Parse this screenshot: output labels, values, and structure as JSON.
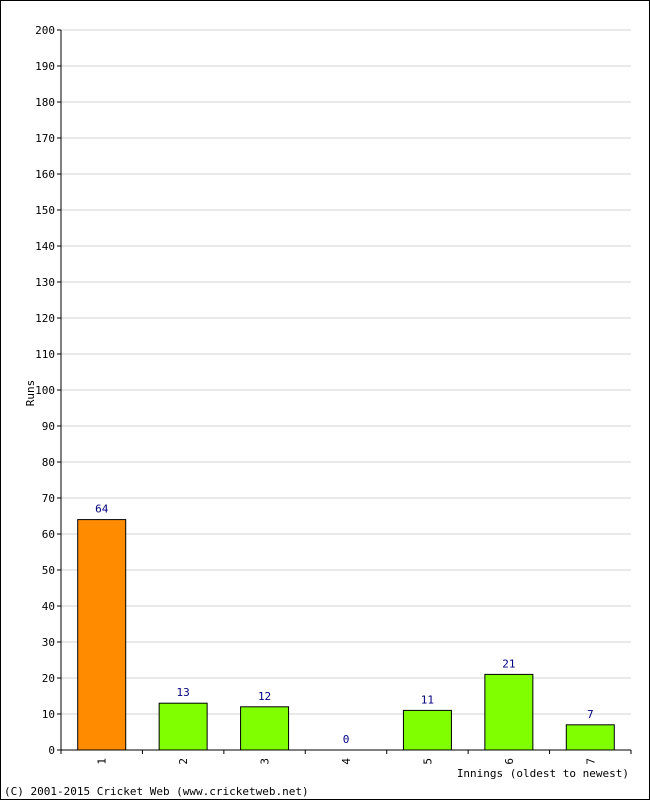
{
  "chart_data": {
    "type": "bar",
    "title": "",
    "xlabel": "Innings (oldest to newest)",
    "ylabel": "Runs",
    "categories": [
      "1",
      "2",
      "3",
      "4",
      "5",
      "6",
      "7"
    ],
    "values": [
      64,
      13,
      12,
      0,
      11,
      21,
      7
    ],
    "data_labels": [
      "64",
      "13",
      "12",
      "0",
      "11",
      "21",
      "7"
    ],
    "yticks": [
      0,
      10,
      20,
      30,
      40,
      50,
      60,
      70,
      80,
      90,
      100,
      110,
      120,
      130,
      140,
      150,
      160,
      170,
      180,
      190,
      200
    ],
    "ylim": [
      0,
      200
    ],
    "grid": true,
    "bar_colors": [
      "#ff8c00",
      "#7fff00",
      "#7fff00",
      "#7fff00",
      "#7fff00",
      "#7fff00",
      "#7fff00"
    ],
    "label_color": "#000080",
    "grid_color": "#d3d3d3"
  },
  "footer": {
    "copyright": "(C) 2001-2015 Cricket Web (www.cricketweb.net)"
  }
}
